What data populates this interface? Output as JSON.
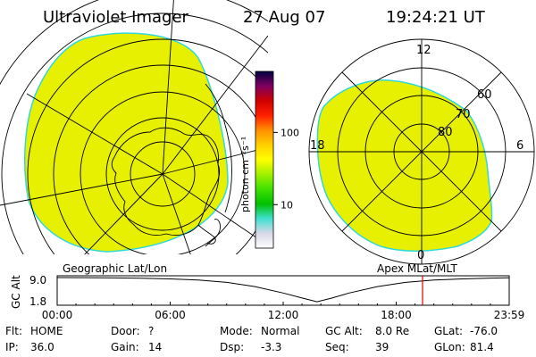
{
  "header": {
    "title": "Ultraviolet Imager",
    "date": "27 Aug 07",
    "time": "19:24:21 UT"
  },
  "colors": {
    "auroral_fill": "#e6f000",
    "fill_edge": "#33d8d8",
    "cursor_line": "#e00000",
    "map_lines": "#000000"
  },
  "colorbar": {
    "unit_label": "photon cm⁻²s⁻¹",
    "ticks": [
      {
        "label": "100",
        "value": 100
      },
      {
        "label": "10",
        "value": 10
      }
    ],
    "range": [
      2.5,
      700
    ],
    "scale": "log",
    "stops": [
      "#ffffff",
      "#d8d8e8",
      "#40e0d0",
      "#00c000",
      "#40e000",
      "#a0f000",
      "#ffff00",
      "#ffd000",
      "#ff9000",
      "#ff2000",
      "#d00000",
      "#800060",
      "#000040"
    ]
  },
  "geo_panel": {
    "label": "Geographic Lat/Lon"
  },
  "polar_panel": {
    "label": "Apex MLat/MLT",
    "mlt_labels": [
      "12",
      "18",
      "6",
      "0"
    ],
    "mlat_labels": [
      "60",
      "70",
      "80"
    ]
  },
  "timeline": {
    "ylabel": "GC Alt",
    "yticks": [
      "9.0",
      "1.8"
    ],
    "yrange": [
      1.8,
      9.0
    ],
    "xticks": [
      "00:00",
      "06:00",
      "12:00",
      "18:00",
      "23:59"
    ],
    "cursor_time_hours": 19.4,
    "altitude_curve": [
      [
        0,
        9.0
      ],
      [
        1.5,
        8.97
      ],
      [
        3,
        8.9
      ],
      [
        4.5,
        8.8
      ],
      [
        6,
        8.6
      ],
      [
        7.5,
        8.25
      ],
      [
        9,
        7.55
      ],
      [
        10.5,
        6.3
      ],
      [
        12,
        4.4
      ],
      [
        13,
        2.9
      ],
      [
        13.8,
        1.8
      ],
      [
        14.6,
        2.9
      ],
      [
        15.5,
        4.4
      ],
      [
        17,
        6.3
      ],
      [
        18.5,
        7.55
      ],
      [
        20,
        8.25
      ],
      [
        21.5,
        8.6
      ],
      [
        23,
        8.85
      ],
      [
        23.98,
        8.95
      ]
    ]
  },
  "status": {
    "row1": [
      {
        "label": "Flt:",
        "value": "HOME"
      },
      {
        "label": "Door:",
        "value": "?"
      },
      {
        "label": "Mode:",
        "value": "Normal"
      },
      {
        "label": "GC Alt:",
        "value": "8.0 Re"
      },
      {
        "label": "GLat:",
        "value": "-76.0"
      }
    ],
    "row2": [
      {
        "label": "IP:",
        "value": "36.0"
      },
      {
        "label": "Gain:",
        "value": "14"
      },
      {
        "label": "Dsp:",
        "value": "-3.3"
      },
      {
        "label": "Seq:",
        "value": "39"
      },
      {
        "label": "GLon:",
        "value": "81.4"
      }
    ]
  }
}
